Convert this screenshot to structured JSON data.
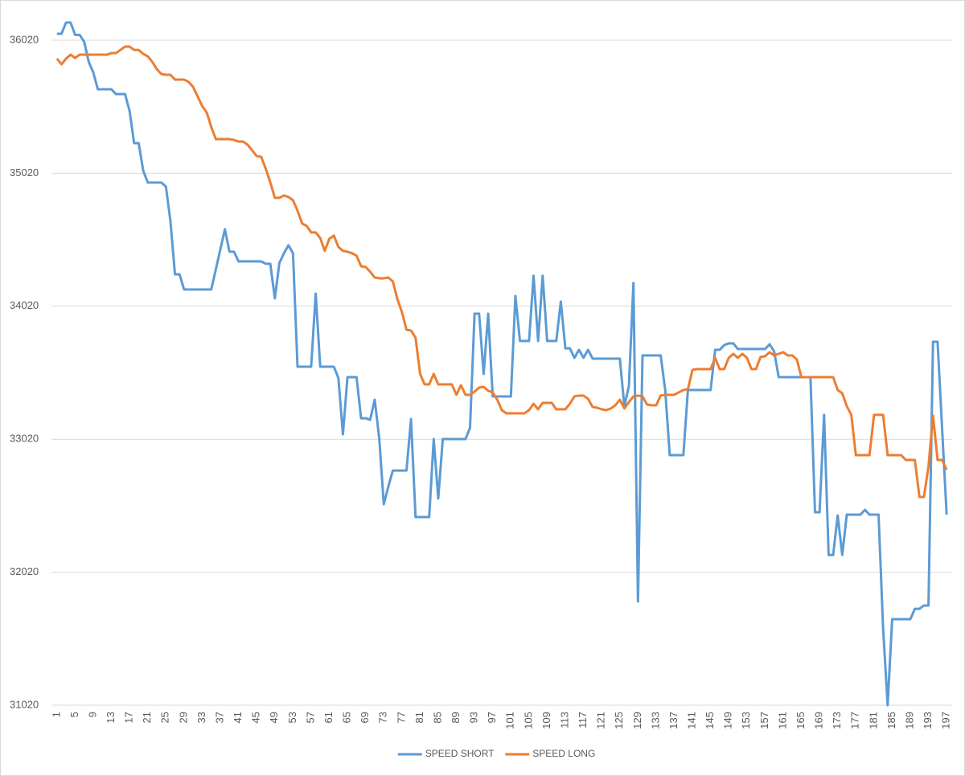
{
  "chart_data": {
    "type": "line",
    "categories": [
      1,
      null,
      null,
      null,
      5,
      null,
      null,
      null,
      9,
      null,
      null,
      null,
      13,
      null,
      null,
      null,
      17,
      null,
      null,
      null,
      21,
      null,
      null,
      null,
      25,
      null,
      null,
      null,
      29,
      null,
      null,
      null,
      33,
      null,
      null,
      null,
      37,
      null,
      null,
      null,
      41,
      null,
      null,
      null,
      45,
      null,
      null,
      null,
      49,
      null,
      null,
      null,
      53,
      null,
      null,
      null,
      57,
      null,
      null,
      null,
      61,
      null,
      null,
      null,
      65,
      null,
      null,
      null,
      69,
      null,
      null,
      null,
      73,
      null,
      null,
      null,
      77,
      null,
      null,
      null,
      81,
      null,
      null,
      null,
      85,
      null,
      null,
      null,
      89,
      null,
      null,
      null,
      93,
      null,
      null,
      null,
      97,
      null,
      null,
      null,
      101,
      null,
      null,
      null,
      105,
      null,
      null,
      null,
      109,
      null,
      null,
      null,
      113,
      null,
      null,
      null,
      117,
      null,
      null,
      null,
      121,
      null,
      null,
      null,
      125,
      null,
      null,
      null,
      129,
      null,
      null,
      null,
      133,
      null,
      null,
      null,
      137,
      null,
      null,
      null,
      141,
      null,
      null,
      null,
      145,
      null,
      null,
      null,
      149,
      null,
      null,
      null,
      153,
      null,
      null,
      null,
      157,
      null,
      null,
      null,
      161,
      null,
      null,
      null,
      165,
      null,
      null,
      null,
      169,
      null,
      null,
      null,
      173,
      null,
      null,
      null,
      177,
      null,
      null,
      null,
      181,
      null,
      null,
      null,
      185,
      null,
      null,
      null,
      189,
      null,
      null,
      null,
      193,
      null,
      null,
      null,
      197
    ],
    "series": [
      {
        "name": "SPEED SHORT",
        "color": "#5b9bd5",
        "values": [
          36068,
          36068,
          36153,
          36153,
          36060,
          36060,
          36008,
          35857,
          35778,
          35651,
          35651,
          35651,
          35651,
          35615,
          35615,
          35615,
          35488,
          35246,
          35246,
          35040,
          34950,
          34950,
          34950,
          34950,
          34920,
          34660,
          34260,
          34260,
          34146,
          34146,
          34146,
          34146,
          34146,
          34146,
          34146,
          34297,
          34448,
          34599,
          34430,
          34430,
          34357,
          34357,
          34357,
          34357,
          34357,
          34357,
          34339,
          34339,
          34079,
          34345,
          34418,
          34478,
          34418,
          33565,
          33565,
          33565,
          33565,
          34115,
          33565,
          33565,
          33565,
          33565,
          33481,
          33057,
          33487,
          33487,
          33487,
          33178,
          33178,
          33166,
          33317,
          33027,
          32531,
          32664,
          32785,
          32785,
          32785,
          32785,
          33172,
          32435,
          32435,
          32435,
          32435,
          33021,
          32574,
          33021,
          33021,
          33021,
          33021,
          33021,
          33021,
          33106,
          33964,
          33964,
          33511,
          33964,
          33342,
          33342,
          33342,
          33342,
          33342,
          34097,
          33759,
          33759,
          33759,
          34249,
          33759,
          34249,
          33759,
          33759,
          33759,
          34055,
          33704,
          33704,
          33632,
          33692,
          33632,
          33692,
          33626,
          33626,
          33626,
          33626,
          33626,
          33626,
          33626,
          33269,
          33420,
          34194,
          31800,
          33650,
          33650,
          33650,
          33650,
          33650,
          33390,
          32900,
          32900,
          32900,
          32900,
          33390,
          33390,
          33390,
          33390,
          33390,
          33390,
          33692,
          33692,
          33728,
          33741,
          33741,
          33698,
          33698,
          33698,
          33698,
          33698,
          33698,
          33698,
          33734,
          33680,
          33487,
          33487,
          33487,
          33487,
          33487,
          33487,
          33487,
          33487,
          32471,
          32471,
          33203,
          32150,
          32150,
          32447,
          32150,
          32453,
          32453,
          32453,
          32453,
          32489,
          32453,
          32453,
          32453,
          31600,
          31020,
          31667,
          31667,
          31667,
          31667,
          31667,
          31745,
          31745,
          31770,
          31770,
          33753,
          33753,
          33100,
          32453
        ]
      },
      {
        "name": "SPEED LONG",
        "color": "#ed7d31",
        "values": [
          35881,
          35839,
          35881,
          35911,
          35887,
          35911,
          35911,
          35911,
          35911,
          35911,
          35911,
          35911,
          35923,
          35923,
          35947,
          35972,
          35972,
          35947,
          35947,
          35917,
          35899,
          35857,
          35802,
          35766,
          35760,
          35760,
          35724,
          35724,
          35724,
          35706,
          35669,
          35597,
          35524,
          35476,
          35367,
          35276,
          35276,
          35276,
          35276,
          35270,
          35258,
          35258,
          35234,
          35192,
          35149,
          35143,
          35053,
          34950,
          34835,
          34835,
          34853,
          34841,
          34817,
          34738,
          34642,
          34624,
          34575,
          34575,
          34533,
          34436,
          34527,
          34551,
          34466,
          34436,
          34430,
          34418,
          34400,
          34321,
          34315,
          34279,
          34236,
          34230,
          34230,
          34236,
          34206,
          34073,
          33976,
          33843,
          33837,
          33783,
          33511,
          33432,
          33432,
          33511,
          33432,
          33432,
          33432,
          33432,
          33354,
          33426,
          33354,
          33354,
          33378,
          33408,
          33414,
          33384,
          33372,
          33317,
          33239,
          33215,
          33215,
          33215,
          33215,
          33215,
          33239,
          33287,
          33245,
          33293,
          33293,
          33293,
          33245,
          33245,
          33245,
          33287,
          33342,
          33348,
          33348,
          33324,
          33263,
          33257,
          33245,
          33239,
          33251,
          33275,
          33317,
          33251,
          33299,
          33342,
          33348,
          33342,
          33281,
          33275,
          33275,
          33348,
          33354,
          33354,
          33354,
          33372,
          33390,
          33396,
          33541,
          33547,
          33547,
          33547,
          33547,
          33632,
          33547,
          33547,
          33632,
          33662,
          33632,
          33662,
          33632,
          33547,
          33547,
          33638,
          33644,
          33674,
          33650,
          33662,
          33674,
          33650,
          33650,
          33620,
          33487,
          33487,
          33487,
          33487,
          33487,
          33487,
          33487,
          33487,
          33390,
          33366,
          33269,
          33203,
          32900,
          32900,
          32900,
          32900,
          33203,
          33203,
          33203,
          32900,
          32900,
          32900,
          32900,
          32864,
          32864,
          32864,
          32586,
          32586,
          32816,
          33197,
          32864,
          32864,
          32791
        ]
      }
    ],
    "ylim": [
      31020,
      36020
    ],
    "yticks": [
      31020,
      32020,
      33020,
      34020,
      35020,
      36020
    ],
    "grid": true,
    "legend": "bottom"
  }
}
